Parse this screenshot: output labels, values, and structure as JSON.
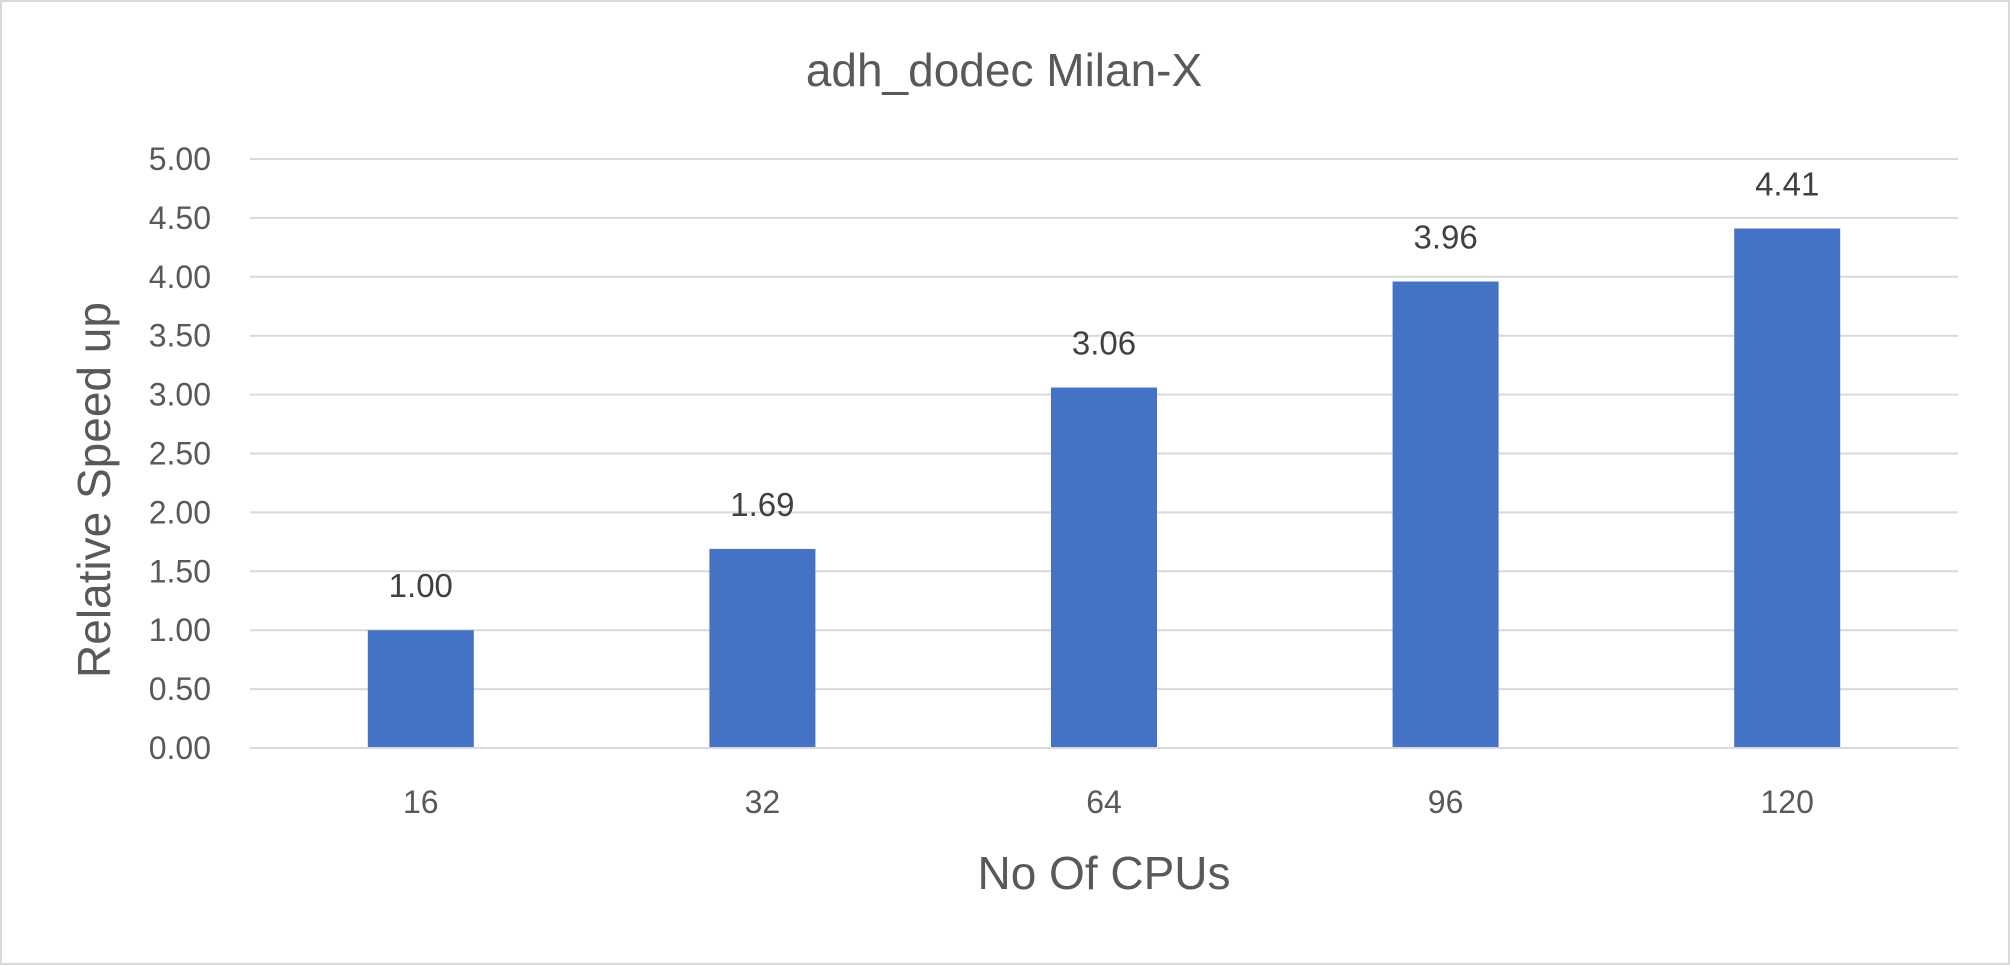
{
  "chart_data": {
    "type": "bar",
    "title": "adh_dodec  Milan-X",
    "xlabel": "No Of CPUs",
    "ylabel": "Relative Speed up",
    "categories": [
      "16",
      "32",
      "64",
      "96",
      "120"
    ],
    "values": [
      1.0,
      1.69,
      3.06,
      3.96,
      4.41
    ],
    "data_labels": [
      "1.00",
      "1.69",
      "3.06",
      "3.96",
      "4.41"
    ],
    "ylim": [
      0,
      5
    ],
    "ytick_values": [
      0,
      0.5,
      1,
      1.5,
      2,
      2.5,
      3,
      3.5,
      4,
      4.5,
      5
    ],
    "ytick_labels": [
      "0.00",
      "0.50",
      "1.00",
      "1.50",
      "2.00",
      "2.50",
      "3.00",
      "3.50",
      "4.00",
      "4.50",
      "5.00"
    ],
    "grid": true,
    "legend": "none",
    "bar_color": "#4472C4"
  }
}
